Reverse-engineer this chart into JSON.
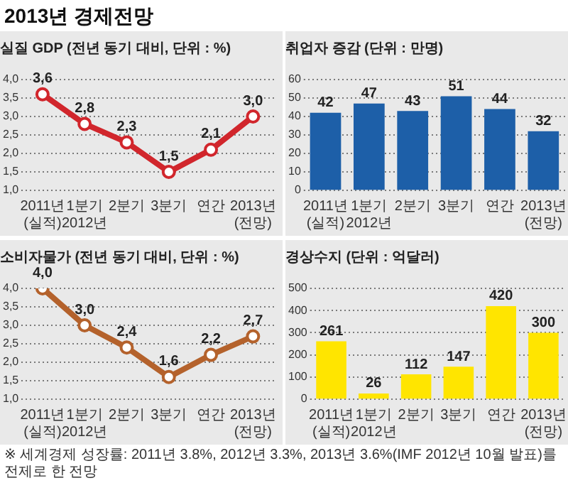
{
  "chart_data": [
    {
      "type": "line",
      "title": "실질 GDP (전년 동기 대비, 단위 : %)",
      "annotations": [
        "2013년 경제전망"
      ],
      "categories": [
        "2011년\n(실적)",
        "1분기\n2012년",
        "2분기",
        "3분기",
        "연간",
        "2013년\n(전망)"
      ],
      "values": [
        3.6,
        2.8,
        2.3,
        1.5,
        2.1,
        3.0
      ],
      "value_labels": [
        "3,6",
        "2,8",
        "2,3",
        "1,5",
        "2,1",
        "3,0"
      ],
      "color": "#d1262c",
      "marker": "circle",
      "ylim": [
        1,
        4
      ],
      "yticks": [
        {
          "value": 1,
          "label": "1,0"
        },
        {
          "value": 1.5,
          "label": "1,5"
        },
        {
          "value": 2,
          "label": "2,0"
        },
        {
          "value": 2.5,
          "label": "2,5"
        },
        {
          "value": 3,
          "label": "3,0"
        },
        {
          "value": 3.5,
          "label": "3,5"
        },
        {
          "value": 4,
          "label": "4,0"
        }
      ],
      "grid": "y"
    },
    {
      "type": "bar",
      "title": "취업자 증감 (단위 : 만명)",
      "categories": [
        "2011년\n(실적)",
        "1분기\n2012년",
        "2분기",
        "3분기",
        "연간",
        "2013년\n(전망)"
      ],
      "values": [
        42,
        47,
        43,
        51,
        44,
        32
      ],
      "data_labels": true,
      "color": "#1d5fa8",
      "ylim": [
        0,
        60
      ],
      "yticks": [
        0,
        10,
        20,
        30,
        40,
        50,
        60
      ],
      "grid": "y"
    },
    {
      "type": "line",
      "title": "소비자물가 (전년 동기 대비, 단위 : %)",
      "categories": [
        "2011년\n(실적)",
        "1분기\n2012년",
        "2분기",
        "3분기",
        "연간",
        "2013년\n(전망)"
      ],
      "values": [
        4.0,
        3.0,
        2.4,
        1.6,
        2.2,
        2.7
      ],
      "value_labels": [
        "4,0",
        "3,0",
        "2,4",
        "1,6",
        "2,2",
        "2,7"
      ],
      "color": "#b4622c",
      "marker": "circle",
      "ylim": [
        1,
        4
      ],
      "yticks": [
        {
          "value": 1,
          "label": "1,0"
        },
        {
          "value": 1.5,
          "label": "1,5"
        },
        {
          "value": 2,
          "label": "2,0"
        },
        {
          "value": 2.5,
          "label": "2,5"
        },
        {
          "value": 3,
          "label": "3,0"
        },
        {
          "value": 3.5,
          "label": "3,5"
        },
        {
          "value": 4,
          "label": "4,0"
        }
      ],
      "grid": "y"
    },
    {
      "type": "bar",
      "title": "경상수지 (단위 : 억달러)",
      "annotations": [
        "※ 세계경제 성장률: 2011년 3.8%, 2012년 3.3%, 2013년 3.6%(IMF 2012년 10월 발표)를 전제로 한 전망"
      ],
      "categories": [
        "2011년\n(실적)",
        "1분기\n2012년",
        "2분기",
        "3분기",
        "연간",
        "2013년\n(전망)"
      ],
      "values": [
        261,
        26,
        112,
        147,
        420,
        300
      ],
      "data_labels": true,
      "color": "#ffe500",
      "ylim": [
        0,
        500
      ],
      "yticks": [
        0,
        100,
        200,
        300,
        400,
        500
      ],
      "grid": "y"
    }
  ]
}
